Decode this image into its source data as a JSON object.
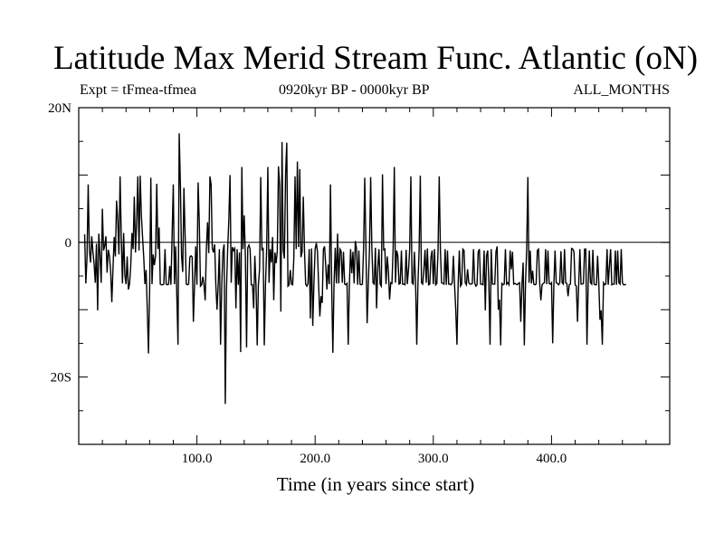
{
  "chart_data": {
    "type": "line",
    "title": "Latitude Max Merid Stream Func. Atlantic (oN)",
    "subtitle_left": "Expt = tFmea-tfmea",
    "subtitle_center": "0920kyr BP - 0000kyr BP",
    "subtitle_right": "ALL_MONTHS",
    "xlabel": "Time (in years since start)",
    "ylabel": "",
    "xlim": [
      0,
      500
    ],
    "ylim": [
      -30,
      20
    ],
    "x_ticks": [
      {
        "value": 100,
        "label": "100.0"
      },
      {
        "value": 200,
        "label": "200.0"
      },
      {
        "value": 300,
        "label": "300.0"
      },
      {
        "value": 400,
        "label": "400.0"
      }
    ],
    "y_ticks": [
      {
        "value": 20,
        "label": "20N"
      },
      {
        "value": 0,
        "label": "0"
      },
      {
        "value": -20,
        "label": "20S"
      }
    ],
    "zero_line": true,
    "series": [
      {
        "name": "latitude_max_merid_stream_func",
        "x_start": 5,
        "x_step": 1,
        "values": [
          1.2,
          -6.1,
          -2.3,
          8.6,
          -1.2,
          -3.0,
          0.9,
          -1.4,
          -3.2,
          -6.0,
          -0.2,
          -10.1,
          1.3,
          -2.0,
          -6.0,
          5.0,
          -1.2,
          -0.5,
          0.9,
          -4.5,
          -1.1,
          -2.0,
          -4.2,
          -8.9,
          -3.8,
          0.8,
          -2.1,
          6.2,
          3.4,
          -1.8,
          9.8,
          0.6,
          -6.1,
          1.4,
          -4.8,
          -6.2,
          -2.1,
          -7.0,
          -6.2,
          -3.5,
          1.4,
          -1.0,
          6.8,
          -1.5,
          3.1,
          9.8,
          -1.2,
          9.9,
          4.0,
          0.8,
          -2.2,
          -6.2,
          -4.1,
          -9.9,
          -16.5,
          -7.0,
          9.6,
          -6.2,
          -1.8,
          -3.4,
          -2.0,
          8.7,
          -1.0,
          2.2,
          -6.2,
          -6.3,
          -6.3,
          -6.2,
          -1.0,
          -6.2,
          -6.3,
          -6.2,
          -3.5,
          -6.3,
          1.0,
          8.6,
          -6.2,
          -0.6,
          -8.0,
          -15.2,
          16.2,
          8.6,
          -2.0,
          -4.4,
          8.1,
          1.1,
          -6.2,
          -6.3,
          -6.2,
          -2.2,
          -2.0,
          -2.2,
          -11.8,
          -6.2,
          -0.6,
          -6.3,
          8.9,
          3.0,
          -6.5,
          -6.3,
          -5.1,
          -6.3,
          -8.6,
          -0.9,
          3.0,
          -1.6,
          9.8,
          8.6,
          -0.9,
          -1.5,
          -0.3,
          -6.3,
          -10.0,
          -6.2,
          -1.0,
          -15.2,
          -6.3,
          -1.4,
          -0.3,
          -24.0,
          -7.0,
          -1.0,
          3.4,
          10.0,
          -6.0,
          -0.7,
          -1.2,
          -0.9,
          -9.8,
          -1.0,
          -6.3,
          -1.5,
          -16.3,
          11.2,
          -1.0,
          4.0,
          -2.1,
          -15.6,
          -0.8,
          -0.4,
          -1.0,
          -6.3,
          -6.3,
          -9.8,
          -2.0,
          -6.4,
          -15.3,
          -6.3,
          -4.0,
          9.7,
          -1.2,
          -0.8,
          -15.3,
          -6.3,
          -1.0,
          11.2,
          -6.0,
          -1.0,
          -3.0,
          0.8,
          -8.6,
          -1.5,
          -3.1,
          -1.3,
          11.3,
          8.4,
          -10.3,
          14.9,
          -1.2,
          -2.4,
          10.1,
          14.8,
          -6.5,
          -6.3,
          -4.1,
          -6.2,
          -6.3,
          -2.2,
          9.8,
          -1.0,
          12.0,
          -0.7,
          10.9,
          -2.2,
          -1.4,
          6.8,
          -1.2,
          -6.2,
          -6.5,
          -6.1,
          -1.0,
          -11.3,
          -0.9,
          -12.4,
          -6.1,
          -1.0,
          -0.1,
          -1.4,
          -6.5,
          -11.0,
          -8.0,
          -9.0,
          -1.0,
          -0.6,
          -3.5,
          -7.0,
          -3.3,
          -6.2,
          8.6,
          -6.3,
          -16.4,
          -6.2,
          -0.8,
          -6.1,
          1.3,
          -6.1,
          -1.0,
          -1.3,
          -6.0,
          -1.4,
          -6.2,
          -6.3,
          -6.1,
          -15.2,
          -6.3,
          -1.0,
          -4.6,
          -1.4,
          -6.1,
          0.2,
          -0.9,
          -6.3,
          -1.2,
          -6.2,
          -6.3,
          -6.2,
          -0.9,
          9.6,
          -1.0,
          -12.0,
          -6.2,
          -1.0,
          9.7,
          -0.9,
          -6.0,
          -6.2,
          -0.8,
          -9.8,
          -3.8,
          -1.0,
          -6.2,
          -6.5,
          10.1,
          -1.1,
          -1.0,
          -6.2,
          -2.1,
          -4.2,
          -8.5,
          -6.0,
          -6.1,
          -1.0,
          11.2,
          -6.0,
          -1.2,
          -2.0,
          -6.2,
          -6.1,
          -1.2,
          -6.2,
          -6.2,
          -6.3,
          -1.1,
          -6.2,
          -4.1,
          -1.0,
          9.8,
          -6.0,
          -6.2,
          -1.4,
          -6.0,
          -15.2,
          -6.1,
          -1.0,
          9.9,
          -6.0,
          -6.2,
          -4.1,
          -1.1,
          -6.0,
          -0.9,
          -6.3,
          -6.2,
          -2.2,
          -1.2,
          -6.2,
          -1.0,
          -6.3,
          -6.1,
          -1.2,
          9.8,
          -1.2,
          -6.0,
          -6.1,
          -6.2,
          -1.0,
          -6.3,
          -1.2,
          -6.2,
          -6.2,
          -6.3,
          -6.0,
          -2.0,
          -6.4,
          -10.0,
          -15.2,
          -6.3,
          -1.2,
          -6.5,
          -6.2,
          -1.0,
          -1.2,
          -6.0,
          -6.3,
          -4.0,
          -6.0,
          -6.2,
          -6.2,
          -6.1,
          -1.0,
          -6.0,
          -6.5,
          -6.3,
          -1.4,
          -1.0,
          -6.2,
          -6.2,
          -6.3,
          -1.2,
          -10.1,
          -2.0,
          -1.2,
          -6.0,
          -15.2,
          -1.0,
          -6.2,
          -6.2,
          -6.2,
          -1.4,
          -0.6,
          -10.0,
          -8.5,
          -15.3,
          -6.1,
          -6.3,
          -6.2,
          -1.0,
          -6.2,
          -6.0,
          -6.3,
          -1.2,
          -4.0,
          -1.4,
          -6.2,
          -6.1,
          -6.2,
          -6.3,
          -6.1,
          -6.0,
          -11.8,
          -6.3,
          -3.0,
          -15.3,
          -6.0,
          -1.0,
          9.7,
          -6.0,
          -1.2,
          -6.1,
          -4.2,
          -6.2,
          -6.3,
          -6.2,
          -1.2,
          -1.0,
          -6.0,
          -8.6,
          -6.3,
          -6.1,
          -6.0,
          -1.0,
          -6.2,
          -1.2,
          -6.1,
          -6.2,
          -6.0,
          -15.0,
          -6.3,
          -1.2,
          -6.0,
          -6.1,
          -6.3,
          -6.0,
          -1.3,
          -6.0,
          -6.2,
          -1.0,
          -6.0,
          -6.1,
          -8.0,
          -6.3,
          -6.2,
          -0.9,
          -1.0,
          -1.4,
          -6.3,
          -6.5,
          -11.8,
          -6.3,
          -1.0,
          -6.2,
          -6.2,
          -6.1,
          -1.0,
          -1.0,
          -15.2,
          -6.3,
          -1.2,
          -6.0,
          -6.2,
          -1.1,
          -6.2,
          -6.3,
          -6.3,
          -2.0,
          -6.0,
          -11.5,
          -10.1,
          -15.2,
          -6.0,
          -6.3,
          -6.2,
          -1.0,
          -6.3,
          -3.5,
          -1.0,
          -6.3,
          -6.2,
          -6.2,
          -1.2,
          -6.3,
          -1.2,
          -6.0,
          -6.2,
          -1.0,
          -6.0,
          -6.3,
          -6.3,
          -6.2
        ]
      }
    ]
  }
}
